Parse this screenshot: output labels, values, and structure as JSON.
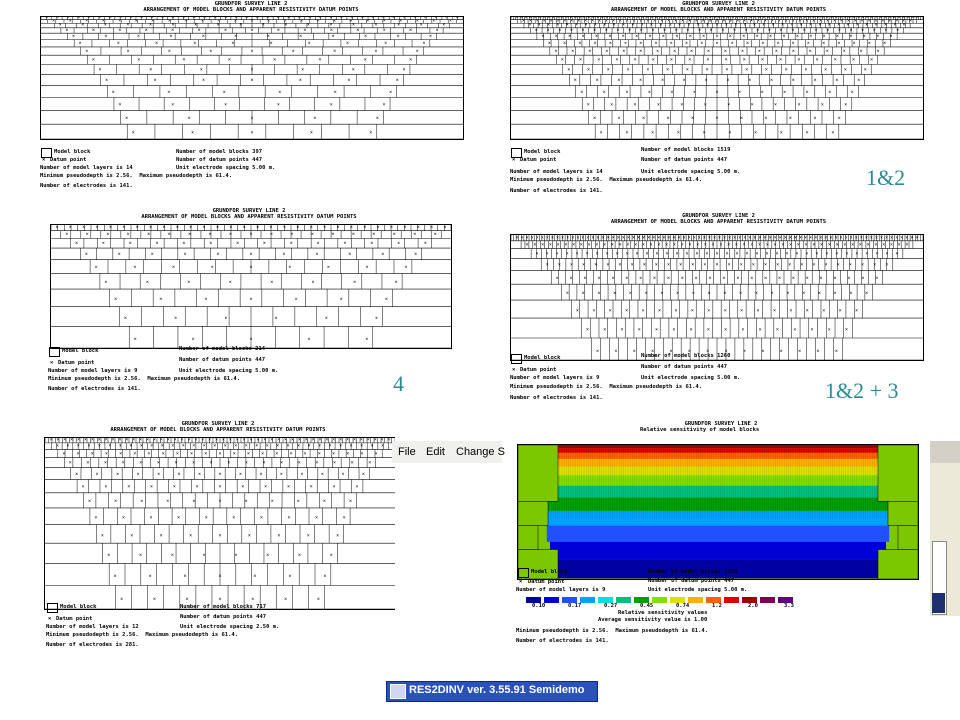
{
  "panels": [
    {
      "title1": "GRUNDFOR SURVEY LINE 2",
      "title2": "ARRANGEMENT OF MODEL BLOCKS AND APPARENT RESISTIVITY DATUM POINTS",
      "legend_block": "Model block",
      "legend_datum": "Datum point",
      "blocks": "Number of model blocks 397",
      "datum": "Number of datum points 447",
      "layers": "Number of model layers is 14",
      "spacing": "Unit electrode spacing 5.00 m.",
      "pseudo": "Minimum pseudodepth is 2.56.  Maximum pseudodepth is 61.4.",
      "electrodes": "Number of electrodes is 141."
    },
    {
      "title1": "GRUNDFOR SURVEY LINE 2",
      "title2": "ARRANGEMENT OF MODEL BLOCKS AND APPARENT RESISTIVITY DATUM POINTS",
      "legend_block": "Model block",
      "legend_datum": "Datum point",
      "blocks": "Number of model blocks 1519",
      "datum": "Number of datum points 447",
      "layers": "Number of model layers is 14",
      "spacing": "Unit electrode spacing 5.00 m.",
      "pseudo": "Minimum pseudodepth is 2.56.  Maximum pseudodepth is 61.4.",
      "electrodes": "Number of electrodes is 141."
    },
    {
      "title1": "GRUNDFOR SURVEY LINE 2",
      "title2": "ARRANGEMENT OF MODEL BLOCKS AND APPARENT RESISTIVITY DATUM POINTS",
      "legend_block": "Model block",
      "legend_datum": "Datum point",
      "blocks": "Number of model blocks 214",
      "datum": "Number of datum points 447",
      "layers": "Number of model layers is 9",
      "spacing": "Unit electrode spacing 5.00 m.",
      "pseudo": "Minimum pseudodepth is 2.56.  Maximum pseudodepth is 61.4.",
      "electrodes": "Number of electrodes is 141."
    },
    {
      "title1": "GRUNDFOR SURVEY LINE 2",
      "title2": "ARRANGEMENT OF MODEL BLOCKS AND APPARENT RESISTIVITY DATUM POINTS",
      "legend_block": "Model block",
      "legend_datum": "Datum point",
      "blocks": "Number of model blocks 1260",
      "datum": "Number of datum points 447",
      "layers": "Number of model layers is 9",
      "spacing": "Unit electrode spacing 5.00 m.",
      "pseudo": "Minimum pseudodepth is 2.56.  Maximum pseudodepth is 61.4.",
      "electrodes": "Number of electrodes is 141."
    },
    {
      "title1": "GRUNDFOR SURVEY LINE 2",
      "title2": "ARRANGEMENT OF MODEL BLOCKS AND APPARENT RESISTIVITY DATUM POINTS",
      "legend_block": "Model block",
      "legend_datum": "Datum point",
      "blocks": "Number of model blocks 717",
      "datum": "Number of datum points 447",
      "layers": "Number of model layers is 12",
      "spacing": "Unit electrode spacing 2.50 m.",
      "pseudo": "Minimum pseudodepth is 2.56.  Maximum pseudodepth is 61.4.",
      "electrodes": "Number of electrodes is 281."
    }
  ],
  "sensitivity": {
    "title1": "GRUNDFOR SURVEY LINE 2",
    "title2": "Relative sensitivity of model blocks",
    "legend_block": "Model block",
    "legend_datum": "Datum point",
    "blocks": "Number of model blocks 1108",
    "datum": "Number of datum points 447",
    "layers": "Number of model layers is 9",
    "spacing": "Unit electrode spacing 5.00 m.",
    "scale_values": [
      "0.10",
      "0.17",
      "0.27",
      "0.45",
      "0.74",
      "1.2",
      "2.0",
      "3.3"
    ],
    "scale_colors": [
      "#0000a0",
      "#0000d8",
      "#2050ff",
      "#00a0ff",
      "#00e0e0",
      "#00c080",
      "#00a000",
      "#80e000",
      "#e0e000",
      "#ffb000",
      "#ff6000",
      "#e00000",
      "#a00000",
      "#800050",
      "#600080"
    ],
    "scale_label": "Relative sensitivity values",
    "average": "Average sensitivity value is 1.00",
    "pseudo": "Minimum pseudodepth is 2.56.  Maximum pseudodepth is 61.4.",
    "electrodes": "Number of electrodes is 141."
  },
  "labels": {
    "l12": "1&2",
    "l4": "4",
    "l123": "1&2 + 3"
  },
  "menu": {
    "file": "File",
    "edit": "Edit",
    "change": "Change S"
  },
  "taskbar": {
    "app": "RES2DINV ver. 3.55.91 Semidemo"
  }
}
